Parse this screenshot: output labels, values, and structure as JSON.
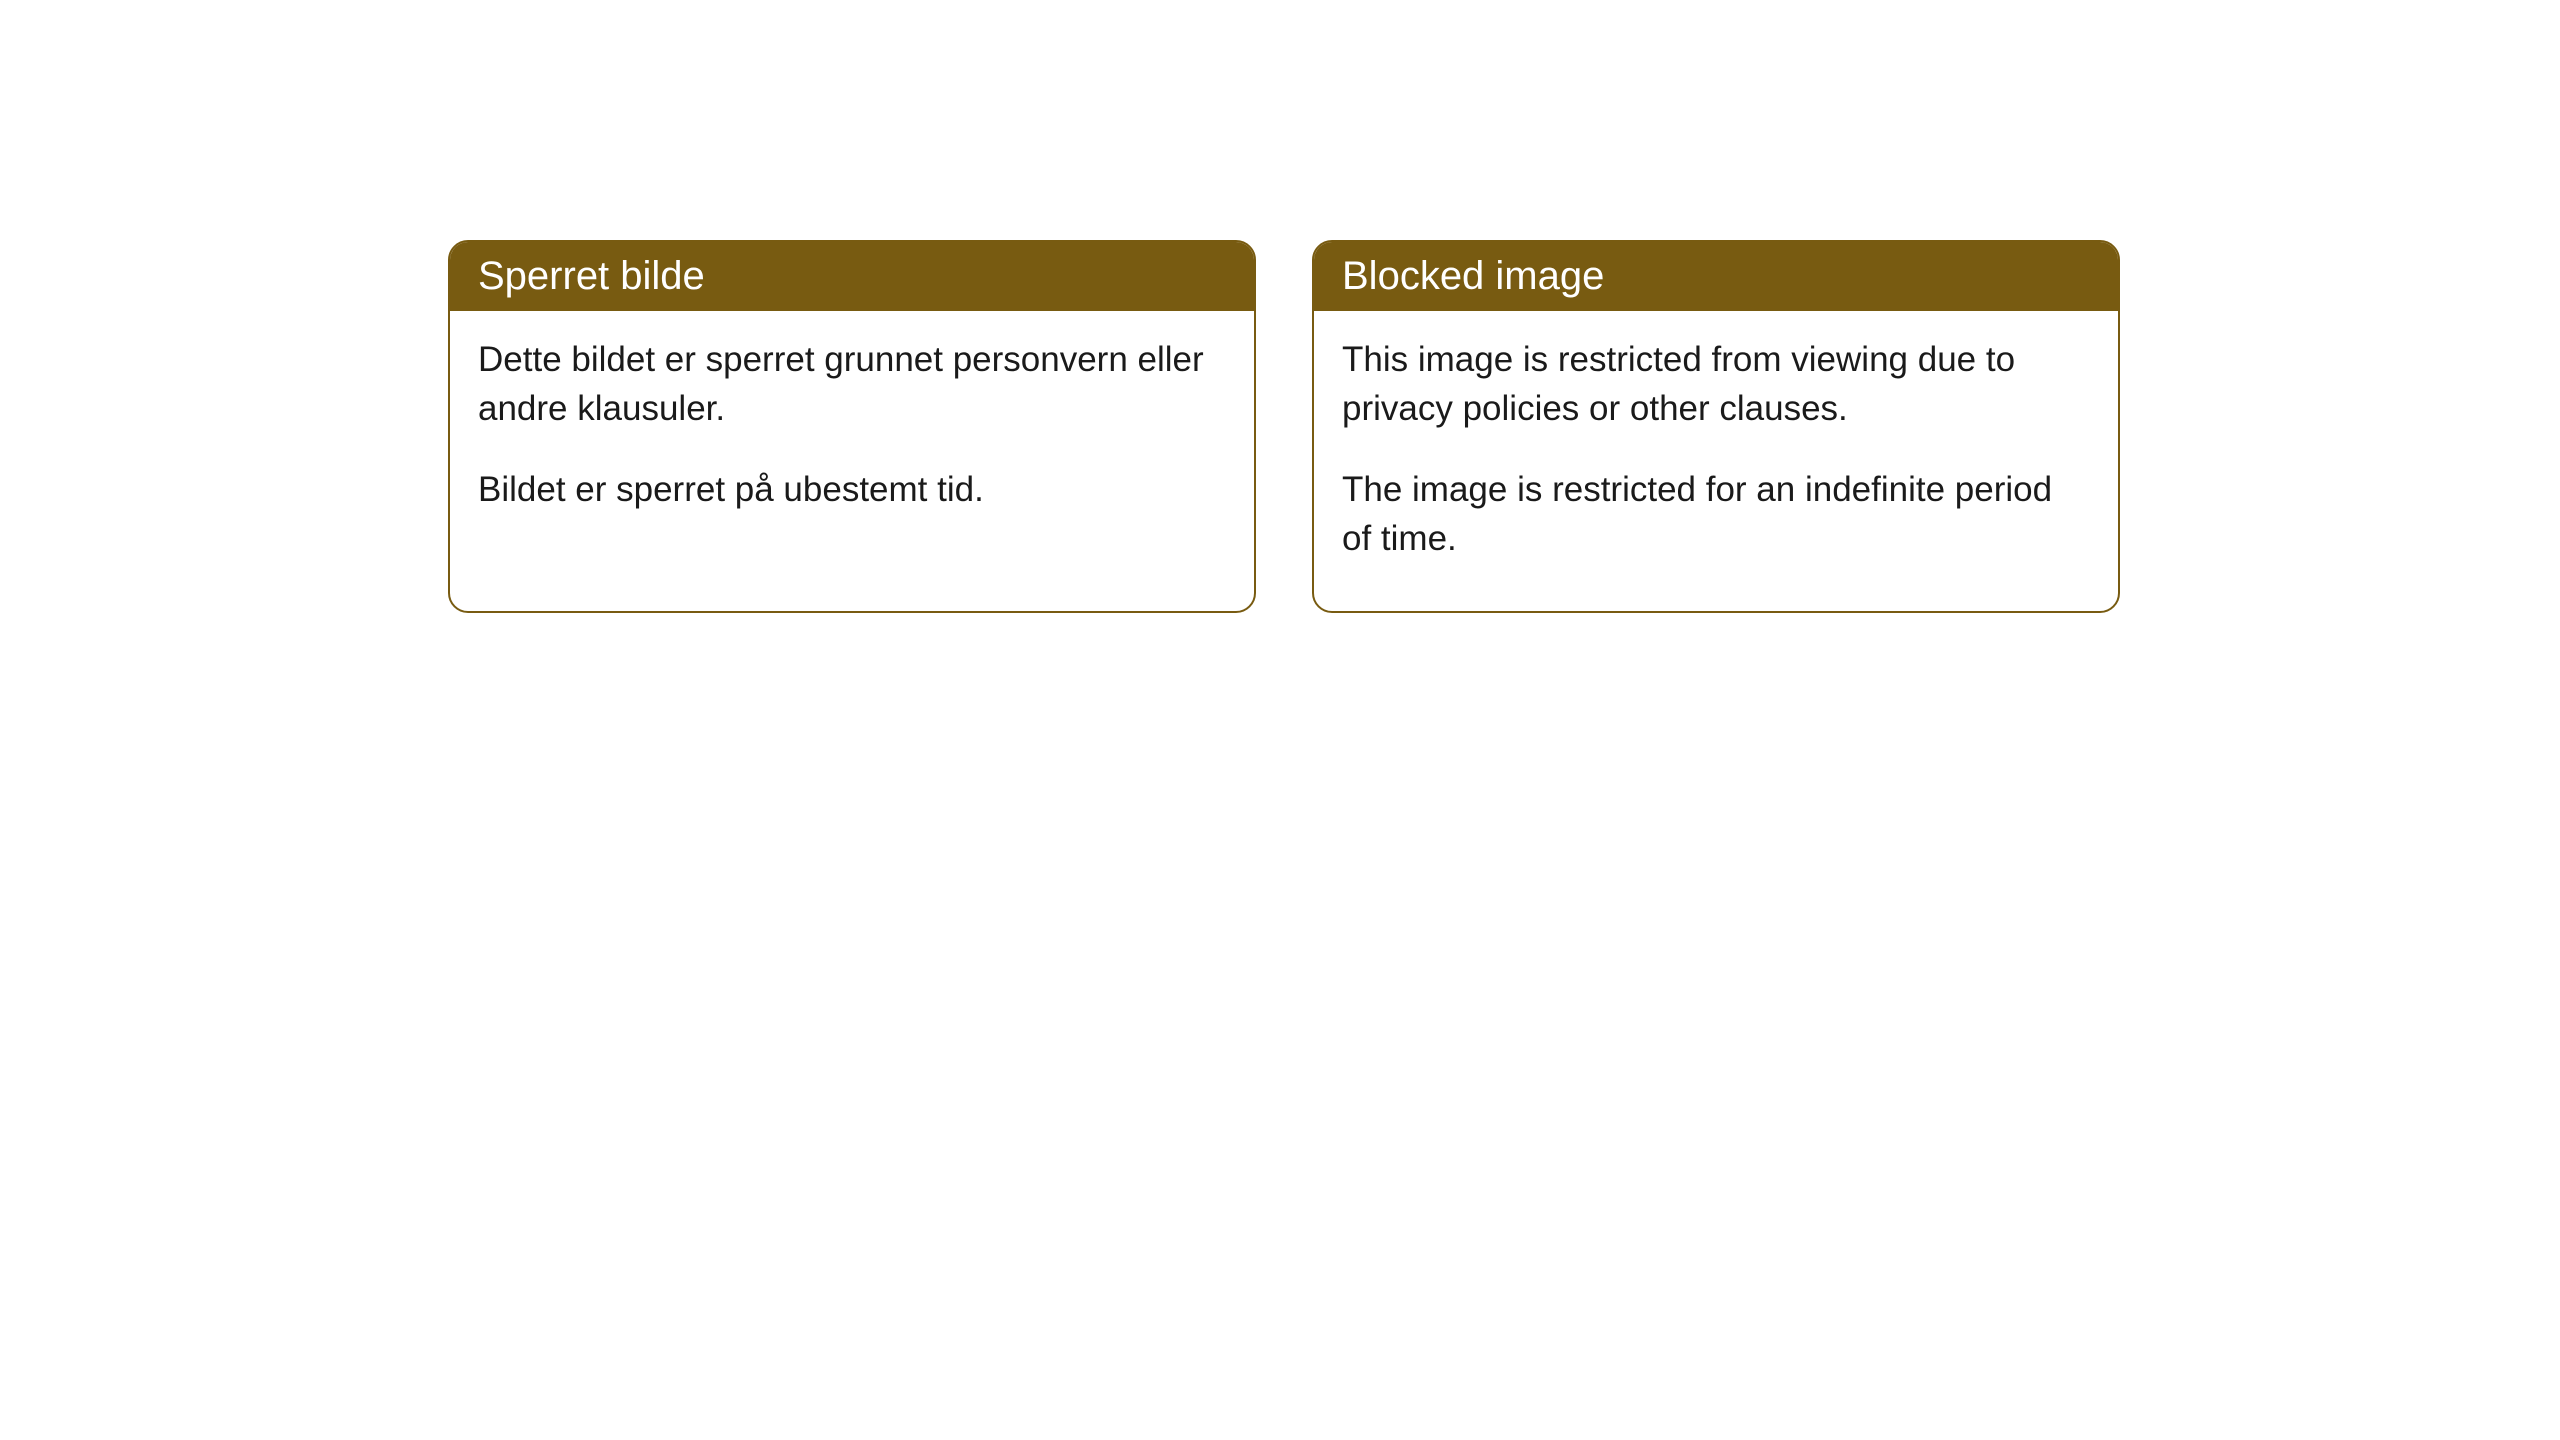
{
  "cards": [
    {
      "title": "Sperret bilde",
      "paragraph1": "Dette bildet er sperret grunnet personvern eller andre klausuler.",
      "paragraph2": "Bildet er sperret på ubestemt tid."
    },
    {
      "title": "Blocked image",
      "paragraph1": "This image is restricted from viewing due to privacy policies or other clauses.",
      "paragraph2": "The image is restricted for an indefinite period of time."
    }
  ],
  "styling": {
    "header_background": "#785b11",
    "header_text_color": "#ffffff",
    "border_color": "#785b11",
    "body_text_color": "#1a1a1a",
    "card_background": "#ffffff",
    "page_background": "#ffffff",
    "border_radius": 20,
    "header_fontsize": 40,
    "body_fontsize": 35
  }
}
